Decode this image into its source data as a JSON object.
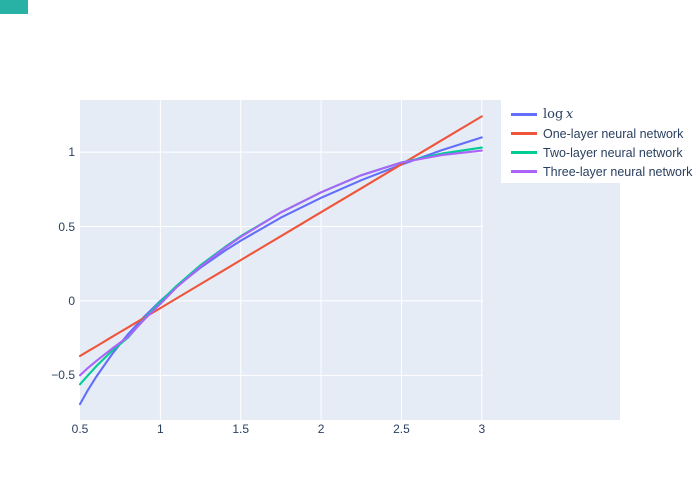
{
  "ui": {
    "corner_tag_color": "#28b1a5",
    "paper_bg": "#ffffff"
  },
  "chart_data": {
    "type": "line",
    "title": "",
    "xlabel": "",
    "ylabel": "",
    "grid": true,
    "legend_position": "top-right-inside",
    "xlim": [
      0.5,
      3.86
    ],
    "ylim": [
      -0.8,
      1.35
    ],
    "xticks": {
      "values": [
        0.5,
        1,
        1.5,
        2,
        2.5,
        3
      ],
      "labels": [
        "0.5",
        "1",
        "1.5",
        "2",
        "2.5",
        "3"
      ]
    },
    "yticks": {
      "values": [
        -0.5,
        0,
        0.5,
        1
      ],
      "labels": [
        "−0.5",
        "0",
        "0.5",
        "1"
      ]
    },
    "x": [
      0.5,
      0.55,
      0.6,
      0.7,
      0.75,
      0.8,
      0.9,
      1.0,
      1.1,
      1.25,
      1.4,
      1.5,
      1.75,
      2.0,
      2.25,
      2.5,
      2.75,
      3.0
    ],
    "series": [
      {
        "name": "log x",
        "label_style": "math",
        "color": "#636EFA",
        "values": [
          -0.693,
          -0.598,
          -0.511,
          -0.357,
          -0.288,
          -0.223,
          -0.105,
          0.0,
          0.095,
          0.223,
          0.336,
          0.405,
          0.56,
          0.693,
          0.811,
          0.916,
          1.012,
          1.099
        ]
      },
      {
        "name": "One-layer neural network",
        "color": "#EF553B",
        "values": [
          -0.37,
          -0.338,
          -0.306,
          -0.241,
          -0.209,
          -0.177,
          -0.112,
          -0.048,
          0.016,
          0.113,
          0.209,
          0.274,
          0.435,
          0.596,
          0.757,
          0.918,
          1.079,
          1.24
        ]
      },
      {
        "name": "Two-layer neural network",
        "color": "#00CC96",
        "values": [
          -0.56,
          -0.5,
          -0.44,
          -0.335,
          -0.29,
          -0.245,
          -0.12,
          -0.005,
          0.1,
          0.24,
          0.36,
          0.435,
          0.595,
          0.73,
          0.845,
          0.93,
          0.99,
          1.03
        ]
      },
      {
        "name": "Three-layer neural network",
        "color": "#AB63FA",
        "values": [
          -0.5,
          -0.45,
          -0.405,
          -0.32,
          -0.28,
          -0.24,
          -0.125,
          -0.02,
          0.09,
          0.23,
          0.355,
          0.43,
          0.595,
          0.73,
          0.845,
          0.93,
          0.98,
          1.01
        ]
      }
    ],
    "colors": {
      "plot_bg": "#E5ECF6",
      "grid": "#FFFFFF",
      "font": "#2A3F5F"
    }
  }
}
